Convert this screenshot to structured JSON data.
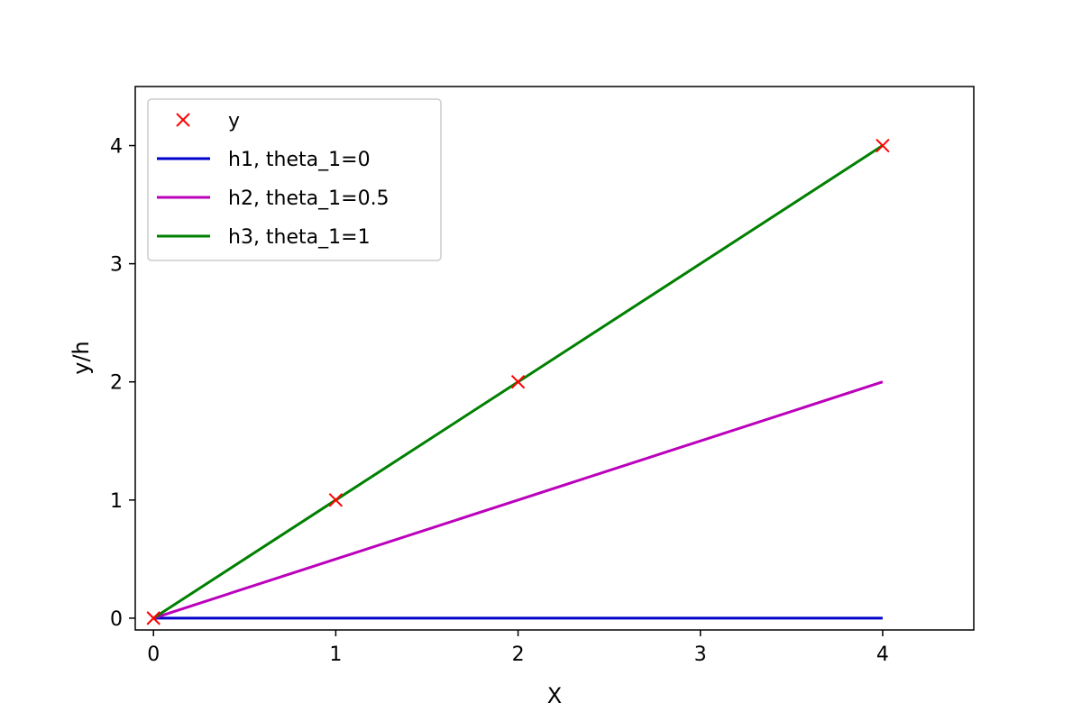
{
  "chart_data": {
    "type": "line",
    "xlabel": "X",
    "ylabel": "y/h",
    "xlim": [
      -0.1,
      4.5
    ],
    "ylim": [
      -0.1,
      4.5
    ],
    "xticks": [
      0,
      1,
      2,
      3,
      4
    ],
    "yticks": [
      0,
      1,
      2,
      3,
      4
    ],
    "grid": false,
    "legend_placement": "top-left",
    "series": [
      {
        "name": "y",
        "kind": "scatter",
        "marker": "x",
        "color": "#ff0000",
        "x": [
          0,
          1,
          2,
          4
        ],
        "y": [
          0,
          1,
          2,
          4
        ]
      },
      {
        "name": "h1, theta_1=0",
        "kind": "line",
        "color": "#0000cc",
        "x": [
          0,
          1,
          2,
          4
        ],
        "y": [
          0,
          0,
          0,
          0
        ]
      },
      {
        "name": "h2, theta_1=0.5",
        "kind": "line",
        "color": "#bb00bb",
        "x": [
          0,
          1,
          2,
          4
        ],
        "y": [
          0,
          0.5,
          1,
          2
        ]
      },
      {
        "name": "h3, theta_1=1",
        "kind": "line",
        "color": "#008000",
        "x": [
          0,
          1,
          2,
          4
        ],
        "y": [
          0,
          1,
          2,
          4
        ]
      }
    ]
  }
}
